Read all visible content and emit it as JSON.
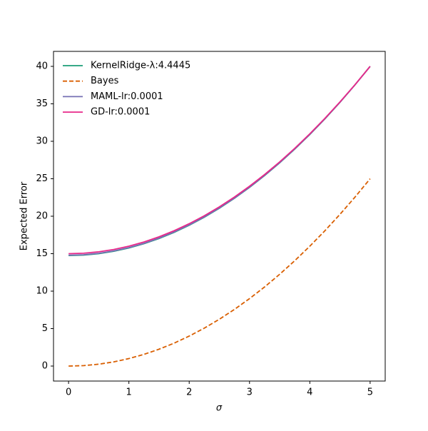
{
  "chart_data": {
    "type": "line",
    "x_label": "σ",
    "y_label": "Expected Error",
    "x": [
      0,
      0.25,
      0.5,
      0.75,
      1,
      1.25,
      1.5,
      1.75,
      2,
      2.25,
      2.5,
      2.75,
      3,
      3.25,
      3.5,
      3.75,
      4,
      4.25,
      4.5,
      4.75,
      5
    ],
    "series": [
      {
        "name": "KernelRidge-λ:4.4445",
        "color": "#1b9e77",
        "linestyle": "solid",
        "values": [
          14.75,
          14.81,
          15.0,
          15.32,
          15.76,
          16.33,
          17.02,
          17.84,
          18.79,
          19.86,
          21.06,
          22.39,
          23.84,
          25.42,
          27.12,
          28.95,
          30.91,
          32.99,
          35.2,
          37.54,
          40.0
        ]
      },
      {
        "name": "Bayes",
        "color": "#d95f02",
        "linestyle": "dashed",
        "values": [
          0,
          0.06,
          0.25,
          0.56,
          1,
          1.56,
          2.25,
          3.06,
          4,
          5.06,
          6.25,
          7.56,
          9,
          10.56,
          12.25,
          14.06,
          16,
          18.06,
          20.25,
          22.56,
          25
        ]
      },
      {
        "name": "MAML-lr:0.0001",
        "color": "#7570b3",
        "linestyle": "solid",
        "values": [
          14.8,
          14.86,
          15.05,
          15.37,
          15.81,
          16.37,
          17.07,
          17.89,
          18.83,
          19.9,
          21.1,
          22.42,
          23.87,
          25.45,
          27.15,
          28.98,
          30.93,
          33.01,
          35.21,
          37.54,
          40.0
        ]
      },
      {
        "name": "GD-lr:0.0001",
        "color": "#e7298a",
        "linestyle": "solid",
        "values": [
          15,
          15.06,
          15.25,
          15.56,
          16,
          16.56,
          17.25,
          18.06,
          19,
          20.06,
          21.25,
          22.56,
          24,
          25.56,
          27.25,
          29.06,
          31,
          33.06,
          35.25,
          37.56,
          40
        ]
      }
    ],
    "xlim": [
      -0.25,
      5.25
    ],
    "ylim": [
      -2,
      42
    ],
    "xticks": [
      0,
      1,
      2,
      3,
      4,
      5
    ],
    "yticks": [
      0,
      5,
      10,
      15,
      20,
      25,
      30,
      35,
      40
    ],
    "grid": false,
    "legend": "upper-left"
  }
}
